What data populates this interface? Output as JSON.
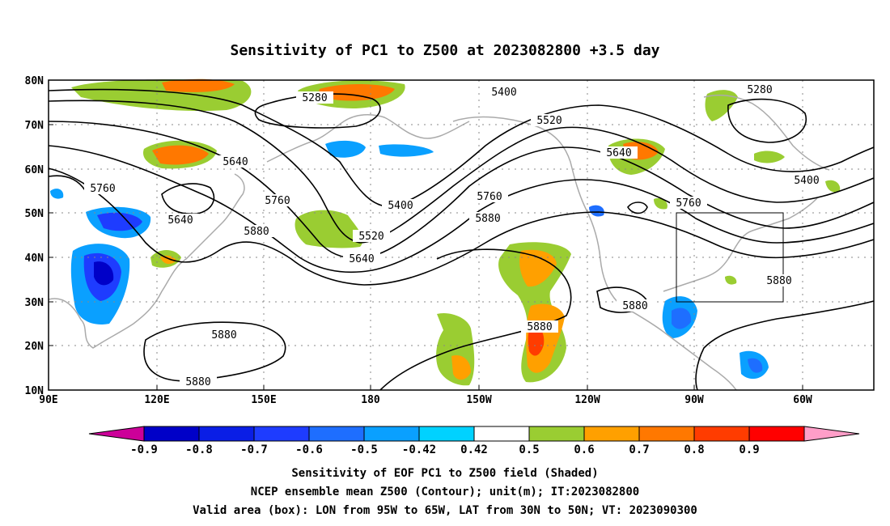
{
  "title": "Sensitivity of PC1 to Z500 at 2023082800 +3.5 day",
  "lat_labels": [
    "80N",
    "70N",
    "60N",
    "50N",
    "40N",
    "30N",
    "20N",
    "10N"
  ],
  "lon_labels": [
    "90E",
    "120E",
    "150E",
    "180",
    "150W",
    "120W",
    "90W",
    "60W"
  ],
  "contour_labels": [
    "5280",
    "5400",
    "5520",
    "5640",
    "5760",
    "5880"
  ],
  "colorbar": {
    "labels": [
      "-0.9",
      "-0.8",
      "-0.7",
      "-0.6",
      "-0.5",
      "-0.42",
      "0.42",
      "0.5",
      "0.6",
      "0.7",
      "0.8",
      "0.9"
    ],
    "colors": [
      "#cc0099",
      "#0000c8",
      "#0a1ee6",
      "#1e3cff",
      "#1e6eff",
      "#0aa0ff",
      "#00d2ff",
      "#ffffff",
      "#9acd32",
      "#ffa000",
      "#ff7800",
      "#ff3c00",
      "#ff0000",
      "#ff9ec8"
    ]
  },
  "footer": {
    "line1": "Sensitivity of EOF PC1 to Z500 field (Shaded)",
    "line2": "NCEP ensemble mean Z500 (Contour); unit(m); IT:2023082800",
    "line3": "Valid area (box): LON from 95W to 65W, LAT from 30N to 50N; VT: 2023090300"
  },
  "valid_box": {
    "lon": [
      "95W",
      "65W"
    ],
    "lat": [
      "30N",
      "50N"
    ]
  }
}
